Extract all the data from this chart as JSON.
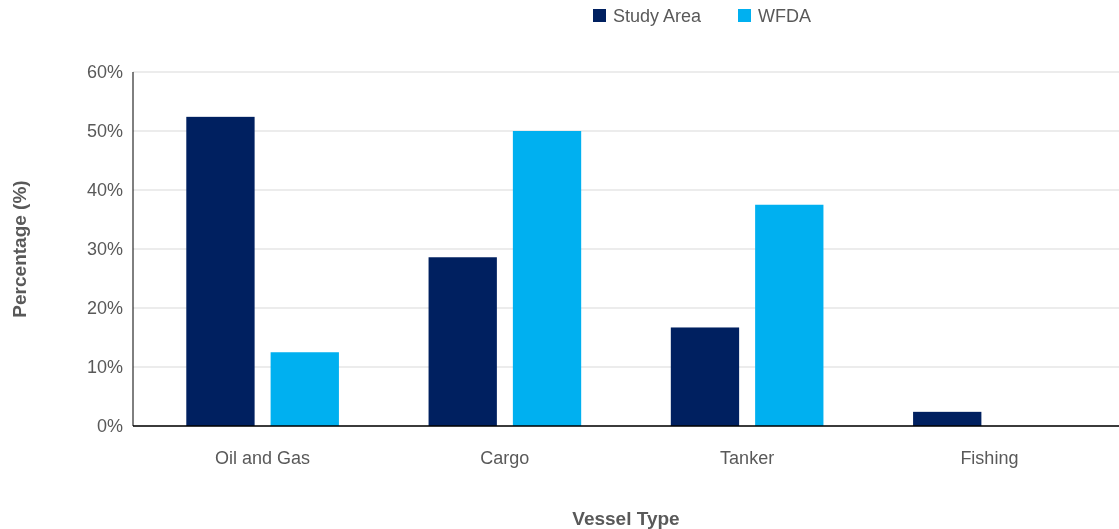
{
  "chart_data": {
    "type": "bar",
    "xlabel": "Vessel Type",
    "ylabel": "Percentage (%)",
    "categories": [
      "Oil and Gas",
      "Cargo",
      "Tanker",
      "Fishing"
    ],
    "series": [
      {
        "name": "Study Area",
        "color": "#002060",
        "values": [
          52.4,
          28.6,
          16.7,
          2.4
        ]
      },
      {
        "name": "WFDA",
        "color": "#00b0f0",
        "values": [
          12.5,
          50,
          37.5,
          0
        ]
      }
    ],
    "ylim": [
      0,
      60
    ],
    "yticks": [
      {
        "value": 0,
        "label": "0%"
      },
      {
        "value": 10,
        "label": "10%"
      },
      {
        "value": 20,
        "label": "20%"
      },
      {
        "value": 30,
        "label": "30%"
      },
      {
        "value": 40,
        "label": "40%"
      },
      {
        "value": 50,
        "label": "50%"
      },
      {
        "value": 60,
        "label": "60%"
      }
    ],
    "grid": "y",
    "legend": "top"
  }
}
